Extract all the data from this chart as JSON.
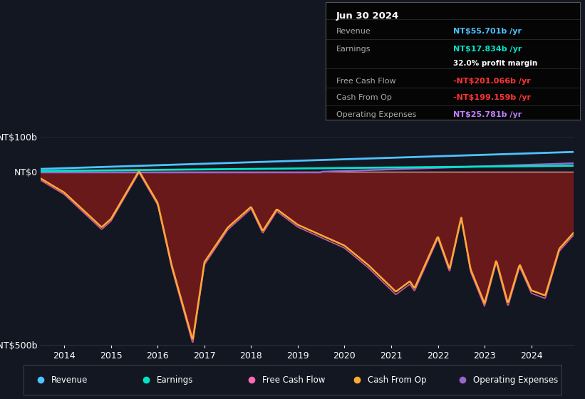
{
  "bg_color": "#131722",
  "plot_bg_color": "#131722",
  "grid_color": "#2a2e39",
  "title_box": {
    "date": "Jun 30 2024",
    "revenue_label": "Revenue",
    "revenue_value": "NT$55.701b /yr",
    "revenue_color": "#4dc3ff",
    "earnings_label": "Earnings",
    "earnings_value": "NT$17.834b /yr",
    "earnings_color": "#00e5c9",
    "margin_text": "32.0% profit margin",
    "fcf_label": "Free Cash Flow",
    "fcf_value": "-NT$201.066b /yr",
    "fcf_color": "#ff3333",
    "cashop_label": "Cash From Op",
    "cashop_value": "-NT$199.159b /yr",
    "cashop_color": "#ff3333",
    "opex_label": "Operating Expenses",
    "opex_value": "NT$25.781b /yr",
    "opex_color": "#bf80ff"
  },
  "ylim": [
    -500,
    150
  ],
  "yticks": [
    -500,
    0,
    100
  ],
  "ytick_labels": [
    "-NT$500b",
    "NT$0",
    "NT$100b"
  ],
  "xlim": [
    2013.5,
    2024.9
  ],
  "xticks": [
    2014,
    2015,
    2016,
    2017,
    2018,
    2019,
    2020,
    2021,
    2022,
    2023,
    2024
  ],
  "revenue_color": "#4dc3ff",
  "earnings_color": "#00e5c9",
  "fcf_color": "#ff69b4",
  "cashop_color": "#ffaa33",
  "opex_color": "#9966cc",
  "fill_color": "#7a1a1a",
  "fill_alpha": 0.85
}
